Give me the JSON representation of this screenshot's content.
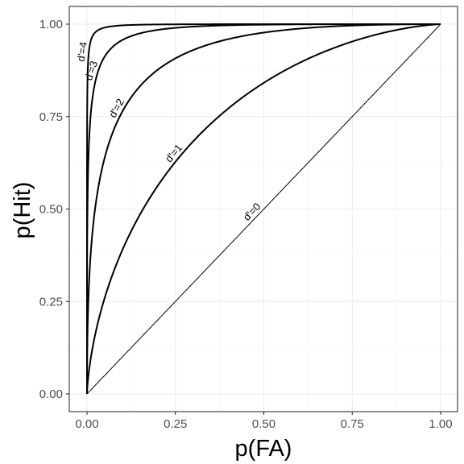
{
  "chart_data": {
    "type": "line",
    "title": "",
    "xlabel": "p(FA)",
    "ylabel": "p(Hit)",
    "xlim": [
      0,
      1
    ],
    "ylim": [
      0,
      1
    ],
    "x_ticks": [
      0,
      0.25,
      0.5,
      0.75,
      1
    ],
    "x_tick_labels": [
      "0.00",
      "0.25",
      "0.50",
      "0.75",
      "1.00"
    ],
    "y_ticks": [
      0,
      0.25,
      0.5,
      0.75,
      1
    ],
    "y_tick_labels": [
      "0.00",
      "0.25",
      "0.50",
      "0.75",
      "1.00"
    ],
    "grid": true,
    "legend": "none",
    "series": [
      {
        "d_prime": 0,
        "label": "d'=0",
        "label_at": 0.48,
        "points": [
          [
            0,
            0
          ],
          [
            0.25,
            0.25
          ],
          [
            0.5,
            0.5
          ],
          [
            0.75,
            0.75
          ],
          [
            1,
            1
          ]
        ]
      },
      {
        "d_prime": 1,
        "label": "d'=1",
        "label_at": 0.26,
        "points": [
          [
            0,
            0
          ],
          [
            0.01,
            0.09
          ],
          [
            0.05,
            0.26
          ],
          [
            0.1,
            0.39
          ],
          [
            0.2,
            0.56
          ],
          [
            0.3,
            0.68
          ],
          [
            0.4,
            0.76
          ],
          [
            0.5,
            0.84
          ],
          [
            0.6,
            0.89
          ],
          [
            0.7,
            0.93
          ],
          [
            0.8,
            0.96
          ],
          [
            0.9,
            0.99
          ],
          [
            1,
            1
          ]
        ]
      },
      {
        "d_prime": 2,
        "label": "d'=2",
        "label_at": 0.1,
        "points": [
          [
            0,
            0
          ],
          [
            0.01,
            0.37
          ],
          [
            0.05,
            0.72
          ],
          [
            0.1,
            0.85
          ],
          [
            0.2,
            0.94
          ],
          [
            0.3,
            0.97
          ],
          [
            0.5,
            0.99
          ],
          [
            1,
            1
          ]
        ]
      },
      {
        "d_prime": 3,
        "label": "d'=3",
        "label_at": 0.03,
        "points": [
          [
            0,
            0
          ],
          [
            0.01,
            0.78
          ],
          [
            0.05,
            0.96
          ],
          [
            0.1,
            0.99
          ],
          [
            0.2,
            1.0
          ],
          [
            1,
            1
          ]
        ]
      },
      {
        "d_prime": 4,
        "label": "d'=4",
        "label_at": 0.005,
        "points": [
          [
            0,
            0
          ],
          [
            0.005,
            0.94
          ],
          [
            0.01,
            0.98
          ],
          [
            0.05,
            1.0
          ],
          [
            1,
            1
          ]
        ]
      }
    ]
  }
}
